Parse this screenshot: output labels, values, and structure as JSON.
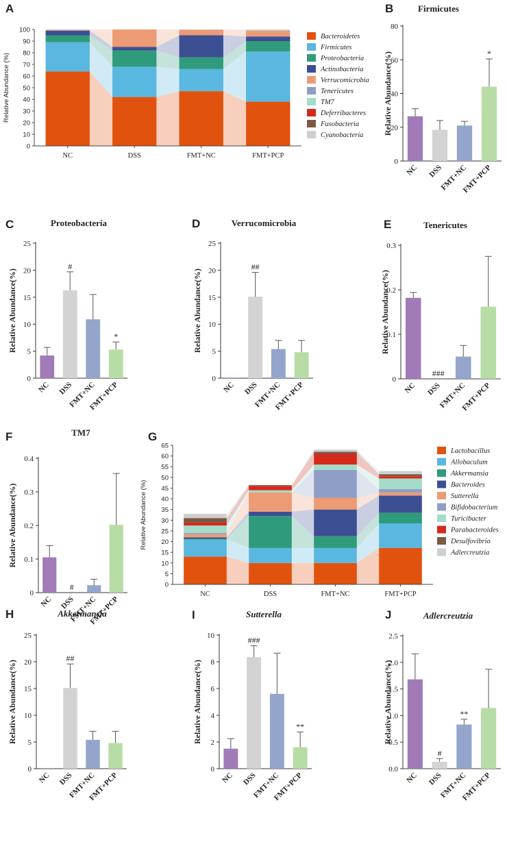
{
  "chart_data": [
    {
      "id": "A",
      "type": "stacked-bar",
      "panel_label": "A",
      "title": "",
      "ylabel": "Relative Abundance (%)",
      "ylim": [
        0,
        100
      ],
      "yticks": [
        0,
        10,
        20,
        30,
        40,
        50,
        60,
        70,
        80,
        90,
        100
      ],
      "categories": [
        "NC",
        "DSS",
        "FMT+NC",
        "FMT+PCP"
      ],
      "series": [
        {
          "name": "Bacteroidetes",
          "color": "#e2520f",
          "values": [
            64,
            42,
            47,
            38
          ]
        },
        {
          "name": "Firmicutes",
          "color": "#5ab7e0",
          "values": [
            25,
            26,
            19,
            43
          ]
        },
        {
          "name": "Proteobacteria",
          "color": "#2f9b7c",
          "values": [
            6,
            14,
            10,
            9
          ]
        },
        {
          "name": "Actinobacteria",
          "color": "#3c4f92",
          "values": [
            4,
            3,
            19,
            4
          ]
        },
        {
          "name": "Verrucomicrobia",
          "color": "#ec9b74",
          "values": [
            0.3,
            15,
            4.5,
            5
          ]
        },
        {
          "name": "Tenericutes",
          "color": "#8e9ec6",
          "values": [
            0.2,
            0,
            0.1,
            0.2
          ]
        },
        {
          "name": "TM7",
          "color": "#a5dcc9",
          "values": [
            0.1,
            0,
            0,
            0.2
          ]
        },
        {
          "name": "Deferribacteres",
          "color": "#d42a1c",
          "values": [
            0.1,
            0,
            0.1,
            0.1
          ]
        },
        {
          "name": "Fusobacteria",
          "color": "#7a5a43",
          "values": [
            0.1,
            0,
            0.1,
            0.1
          ]
        },
        {
          "name": "Cyanobacteria",
          "color": "#cfcfcf",
          "values": [
            0.1,
            0,
            0.1,
            0.1
          ]
        }
      ]
    },
    {
      "id": "B",
      "type": "bar",
      "panel_label": "B",
      "title": "Firmicutes",
      "ylabel": "Relative Abundance(%)",
      "ylim": [
        0,
        80
      ],
      "yticks": [
        0,
        20,
        40,
        60,
        80
      ],
      "categories": [
        "NC",
        "DSS",
        "FMT+NC",
        "FMT+PCP"
      ],
      "values": [
        26.5,
        18.5,
        21,
        44
      ],
      "errors": [
        4.5,
        5.5,
        2.5,
        16.5
      ],
      "annotations": [
        "",
        "",
        "",
        "*"
      ],
      "colors": [
        "#a07bb8",
        "#d3d3d3",
        "#93a5cb",
        "#b8dca6"
      ]
    },
    {
      "id": "C",
      "type": "bar",
      "panel_label": "C",
      "title": "Proteobacteria",
      "ylabel": "Relative Abundance(%)",
      "ylim": [
        0,
        25
      ],
      "yticks": [
        0,
        5,
        10,
        15,
        20,
        25
      ],
      "categories": [
        "NC",
        "DSS",
        "FMT+NC",
        "FMT+PCP"
      ],
      "values": [
        4.2,
        16.3,
        10.9,
        5.3
      ],
      "errors": [
        1.5,
        3.4,
        4.6,
        1.4
      ],
      "annotations": [
        "",
        "#",
        "",
        "*"
      ],
      "colors": [
        "#a07bb8",
        "#d3d3d3",
        "#93a5cb",
        "#b8dca6"
      ]
    },
    {
      "id": "D",
      "type": "bar",
      "panel_label": "D",
      "title": "Verrucomicrobia",
      "ylabel": "Relative Abundance(%)",
      "ylim": [
        0,
        25
      ],
      "yticks": [
        0,
        5,
        10,
        15,
        20,
        25
      ],
      "categories": [
        "NC",
        "DSS",
        "FMT+NC",
        "FMT+PCP"
      ],
      "values": [
        0.1,
        15.1,
        5.4,
        4.8
      ],
      "errors": [
        0,
        4.5,
        1.6,
        2.2
      ],
      "annotations": [
        "",
        "##",
        "",
        ""
      ],
      "colors": [
        "#a07bb8",
        "#d3d3d3",
        "#93a5cb",
        "#b8dca6"
      ]
    },
    {
      "id": "E",
      "type": "bar",
      "panel_label": "E",
      "title": "Tenericutes",
      "ylabel": "Relative Abundance(%)",
      "ylim": [
        0,
        0.3
      ],
      "yticks": [
        0.0,
        0.1,
        0.2,
        0.3
      ],
      "categories": [
        "NC",
        "DSS",
        "FMT+NC",
        "FMT+PCP"
      ],
      "values": [
        0.182,
        0,
        0.05,
        0.162
      ],
      "errors": [
        0.012,
        0,
        0.025,
        0.113
      ],
      "annotations": [
        "",
        "###",
        "",
        ""
      ],
      "colors": [
        "#a07bb8",
        "#d3d3d3",
        "#93a5cb",
        "#b8dca6"
      ]
    },
    {
      "id": "F",
      "type": "bar",
      "panel_label": "F",
      "title": "TM7",
      "ylabel": "Relative Abundance(%)",
      "ylim": [
        0,
        0.4
      ],
      "yticks": [
        0.0,
        0.1,
        0.2,
        0.3,
        0.4
      ],
      "categories": [
        "NC",
        "DSS",
        "FMT+NC",
        "FMT+PCP"
      ],
      "values": [
        0.105,
        0,
        0.022,
        0.202
      ],
      "errors": [
        0.035,
        0,
        0.018,
        0.153
      ],
      "annotations": [
        "",
        "#",
        "",
        ""
      ],
      "colors": [
        "#a07bb8",
        "#d3d3d3",
        "#93a5cb",
        "#b8dca6"
      ]
    },
    {
      "id": "G",
      "type": "stacked-bar",
      "panel_label": "G",
      "title": "",
      "ylabel": "Relative Abundance (%)",
      "ylim": [
        0,
        65
      ],
      "yticks": [
        0,
        5,
        10,
        15,
        20,
        25,
        30,
        35,
        40,
        45,
        50,
        55,
        60,
        65
      ],
      "categories": [
        "NC",
        "DSS",
        "FMT+NC",
        "FMT+PCP"
      ],
      "series": [
        {
          "name": "Lactobacillus",
          "color": "#e2520f",
          "values": [
            13,
            10,
            10,
            17
          ]
        },
        {
          "name": "Allobaculum",
          "color": "#5ab7e0",
          "values": [
            8,
            7,
            7,
            11.5
          ]
        },
        {
          "name": "Akkermansia",
          "color": "#2f9b7c",
          "values": [
            0.3,
            15,
            5.5,
            5
          ]
        },
        {
          "name": "Bacteroides",
          "color": "#3c4f92",
          "values": [
            0.7,
            2,
            12.5,
            8
          ]
        },
        {
          "name": "Sutterella",
          "color": "#ec9b74",
          "values": [
            1.5,
            9,
            5.5,
            1.5
          ]
        },
        {
          "name": "Bifidobacterium",
          "color": "#8e9ec6",
          "values": [
            0.5,
            0,
            13,
            1.5
          ]
        },
        {
          "name": "Turicibacter",
          "color": "#a5dcc9",
          "values": [
            3.5,
            1,
            2.5,
            5
          ]
        },
        {
          "name": "Parabacteroides",
          "color": "#d42a1c",
          "values": [
            1.5,
            2,
            5,
            1
          ]
        },
        {
          "name": "Desulfovibrio",
          "color": "#7a5a43",
          "values": [
            2,
            0.4,
            1,
            1
          ]
        },
        {
          "name": "Adlercreutzia",
          "color": "#cfcfcf",
          "values": [
            2,
            0.1,
            1,
            1.5
          ]
        }
      ]
    },
    {
      "id": "H",
      "type": "bar",
      "panel_label": "H",
      "title": "Akkermansia",
      "title_italic": true,
      "ylabel": "Relative Abundance(%)",
      "ylim": [
        0,
        25
      ],
      "yticks": [
        0,
        5,
        10,
        15,
        20,
        25
      ],
      "categories": [
        "NC",
        "DSS",
        "FMT+NC",
        "FMT+PCP"
      ],
      "values": [
        0.1,
        15.1,
        5.4,
        4.8
      ],
      "errors": [
        0,
        4.5,
        1.6,
        2.2
      ],
      "annotations": [
        "",
        "##",
        "",
        ""
      ],
      "colors": [
        "#a07bb8",
        "#d3d3d3",
        "#93a5cb",
        "#b8dca6"
      ]
    },
    {
      "id": "I",
      "type": "bar",
      "panel_label": "I",
      "title": "Sutterella",
      "title_italic": true,
      "ylabel": "Relative Abundance(%)",
      "ylim": [
        0,
        10
      ],
      "yticks": [
        0,
        2,
        4,
        6,
        8,
        10
      ],
      "categories": [
        "NC",
        "DSS",
        "FMT+NC",
        "FMT+PCP"
      ],
      "values": [
        1.5,
        8.35,
        5.6,
        1.6
      ],
      "errors": [
        0.75,
        0.85,
        3.05,
        1.15
      ],
      "annotations": [
        "",
        "###",
        "",
        "**"
      ],
      "colors": [
        "#a07bb8",
        "#d3d3d3",
        "#93a5cb",
        "#b8dca6"
      ]
    },
    {
      "id": "J",
      "type": "bar",
      "panel_label": "J",
      "title": "Adlercreutzia",
      "title_italic": true,
      "ylabel": "Relative Abundance(%)",
      "ylim": [
        0,
        2.5
      ],
      "yticks": [
        "0.0",
        "0.5",
        "1.0",
        "1.5",
        "2.0",
        "2.5"
      ],
      "categories": [
        "NC",
        "DSS",
        "FMT+NC",
        "FMT+PCP"
      ],
      "values": [
        1.68,
        0.13,
        0.83,
        1.14
      ],
      "errors": [
        0.48,
        0.06,
        0.1,
        0.73
      ],
      "annotations": [
        "",
        "#",
        "**",
        ""
      ],
      "colors": [
        "#a07bb8",
        "#d3d3d3",
        "#93a5cb",
        "#b8dca6"
      ]
    }
  ]
}
